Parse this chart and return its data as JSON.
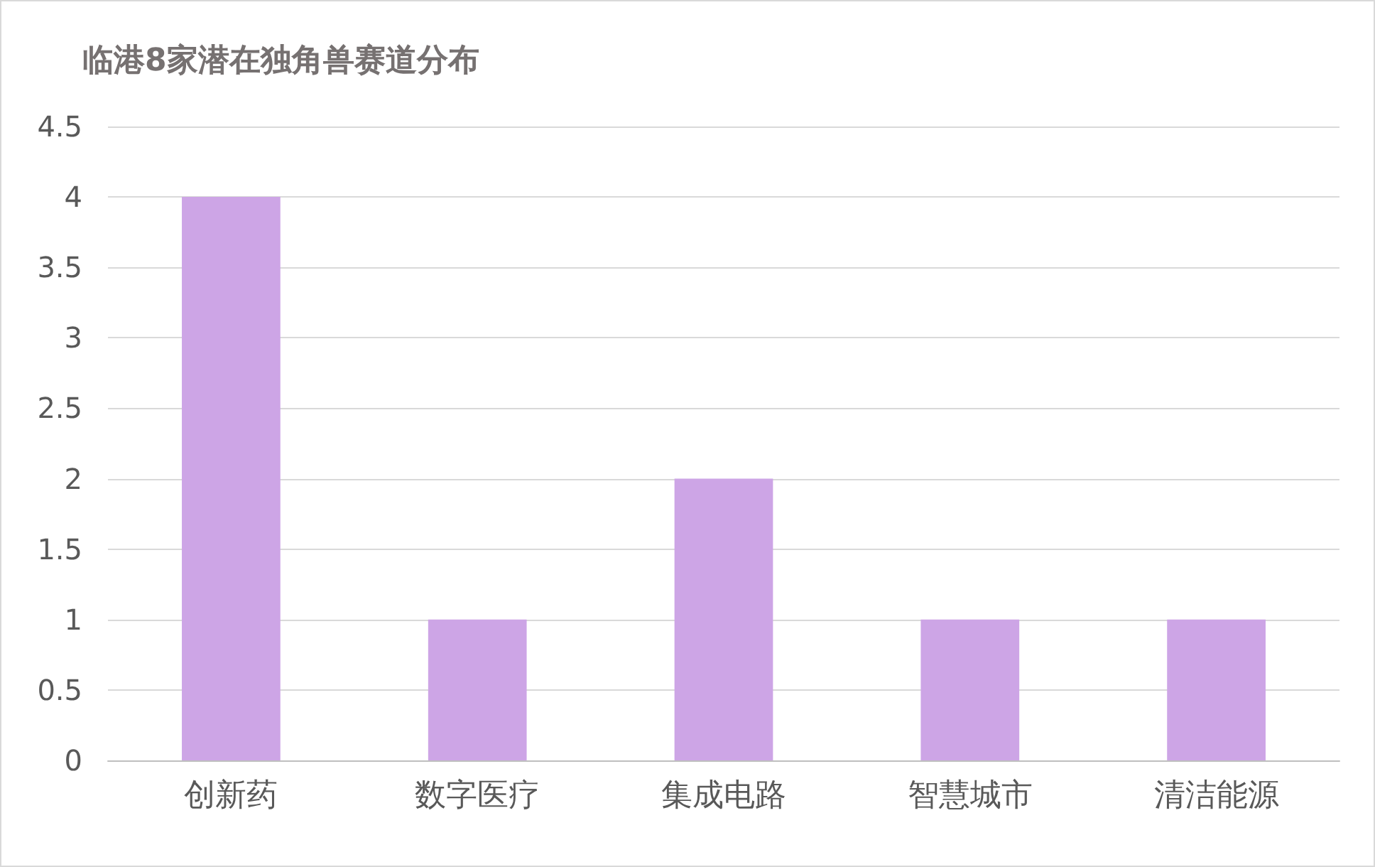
{
  "chart_data": {
    "type": "bar",
    "title": "临港8家潜在独角兽赛道分布",
    "categories": [
      "创新药",
      "数字医疗",
      "集成电路",
      "智慧城市",
      "清洁能源"
    ],
    "values": [
      4,
      1,
      2,
      1,
      1
    ],
    "color": "#cda5e6",
    "ylim": [
      0,
      4.5
    ],
    "yticks": [
      0,
      0.5,
      1,
      1.5,
      2,
      2.5,
      3,
      3.5,
      4,
      4.5
    ],
    "grid": "y"
  }
}
